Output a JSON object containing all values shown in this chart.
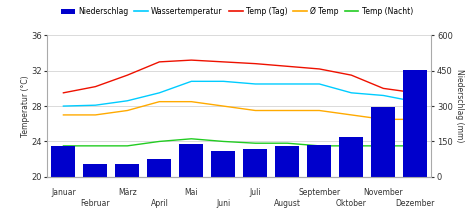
{
  "months": [
    "Januar",
    "Februar",
    "März",
    "April",
    "Mai",
    "Juni",
    "Juli",
    "August",
    "September",
    "Oktober",
    "November",
    "Dezember"
  ],
  "x_tick_odd": [
    "Januar",
    "März",
    "Mai",
    "Juli",
    "September",
    "November"
  ],
  "x_tick_even": [
    "Februar",
    "April",
    "Juni",
    "August",
    "Oktober",
    "Dezember"
  ],
  "niederschlag": [
    130,
    55,
    55,
    75,
    140,
    110,
    120,
    130,
    135,
    170,
    295,
    455
  ],
  "wassertemperatur": [
    28.0,
    28.1,
    28.6,
    29.5,
    30.8,
    30.8,
    30.5,
    30.5,
    30.5,
    29.5,
    29.2,
    28.5
  ],
  "temp_tag": [
    29.5,
    30.2,
    31.5,
    33.0,
    33.2,
    33.0,
    32.8,
    32.5,
    32.2,
    31.5,
    30.0,
    29.5
  ],
  "avg_temp": [
    27.0,
    27.0,
    27.5,
    28.5,
    28.5,
    28.0,
    27.5,
    27.5,
    27.5,
    27.0,
    26.5,
    26.5
  ],
  "temp_nacht": [
    23.5,
    23.5,
    23.5,
    24.0,
    24.3,
    24.0,
    23.8,
    23.8,
    23.5,
    23.5,
    23.5,
    23.5
  ],
  "bar_color": "#0000cc",
  "line_wasser": "#00ccff",
  "line_tag": "#ee1100",
  "line_avg": "#ffaa00",
  "line_nacht": "#22cc22",
  "temp_ylim": [
    20,
    36
  ],
  "niederschlag_ylim": [
    0,
    600
  ],
  "temp_yticks": [
    20,
    24,
    28,
    32,
    36
  ],
  "niederschlag_yticks": [
    0,
    150,
    300,
    450,
    600
  ],
  "bg_color": "#ffffff",
  "grid_color": "#cccccc",
  "ylabel_left": "Temperatur (°C)",
  "ylabel_right": "Niederschlag (mm)",
  "legend_items": [
    "Niederschlag",
    "Wassertemperatur",
    "Temp (Tag)",
    "Ø Temp",
    "Temp (Nacht)"
  ]
}
